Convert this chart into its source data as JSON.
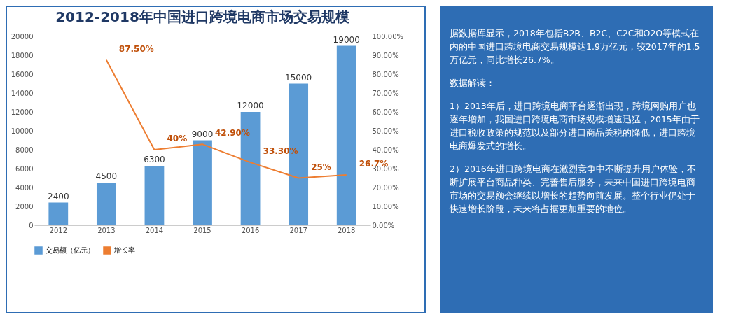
{
  "chart_data": [
    {
      "type": "bar",
      "title": "2012-2018年中国进口跨境电商市场交易规模",
      "categories": [
        "2012",
        "2013",
        "2014",
        "2015",
        "2016",
        "2017",
        "2018"
      ],
      "series": [
        {
          "name": "交易额（亿元）",
          "color": "#5b9bd5",
          "values": [
            2400,
            4500,
            6300,
            9000,
            12000,
            15000,
            19000
          ]
        },
        {
          "name": "增长率",
          "type": "line",
          "axis": "y2",
          "color": "#ed7d31",
          "values": [
            null,
            87.5,
            40,
            42.9,
            33.3,
            25,
            26.7
          ],
          "value_labels": [
            null,
            "87.50%",
            "40%",
            "42.90%",
            "33.30%",
            "25%",
            "26.7%"
          ]
        }
      ],
      "data_labels": true,
      "legend": "bottom",
      "ylim": [
        0,
        20000
      ],
      "yticks": [
        0,
        2000,
        4000,
        6000,
        8000,
        10000,
        12000,
        14000,
        16000,
        18000,
        20000
      ],
      "y2lim": [
        0,
        100
      ],
      "y2ticks": [
        {
          "value": 0,
          "label": "0.00%"
        },
        {
          "value": 10,
          "label": "10.00%"
        },
        {
          "value": 20,
          "label": "20.00%"
        },
        {
          "value": 30,
          "label": "30.00%"
        },
        {
          "value": 40,
          "label": "40.00%"
        },
        {
          "value": 50,
          "label": "50.00%"
        },
        {
          "value": 60,
          "label": "60.00%"
        },
        {
          "value": 70,
          "label": "70.00%"
        },
        {
          "value": 80,
          "label": "80.00%"
        },
        {
          "value": 90,
          "label": "90.00%"
        },
        {
          "value": 100,
          "label": "100.00%"
        }
      ]
    },
    {
      "type": "other",
      "annotations": [
        "据数据库显示，2018年包括B2B、B2C、C2C和O2O等模式在内的中国进口跨境电商交易规模达1.9万亿元，较2017年的1.5万亿元，同比增长26.7%。",
        "数据解读：",
        "1）2013年后，进口跨境电商平台逐渐出现，跨境网购用户也逐年增加，我国进口跨境电商市场规模增速迅猛，2015年由于进口税收政策的规范以及部分进口商品关税的降低，进口跨境电商爆发式的增长。",
        "2）2016年进口跨境电商在激烈竞争中不断提升用户体验，不断扩展平台商品种类、完善售后服务，未来中国进口跨境电商市场的交易额会继续以增长的趋势向前发展。整个行业仍处于快速增长阶段，未来将占据更加重要的地位。"
      ]
    }
  ]
}
